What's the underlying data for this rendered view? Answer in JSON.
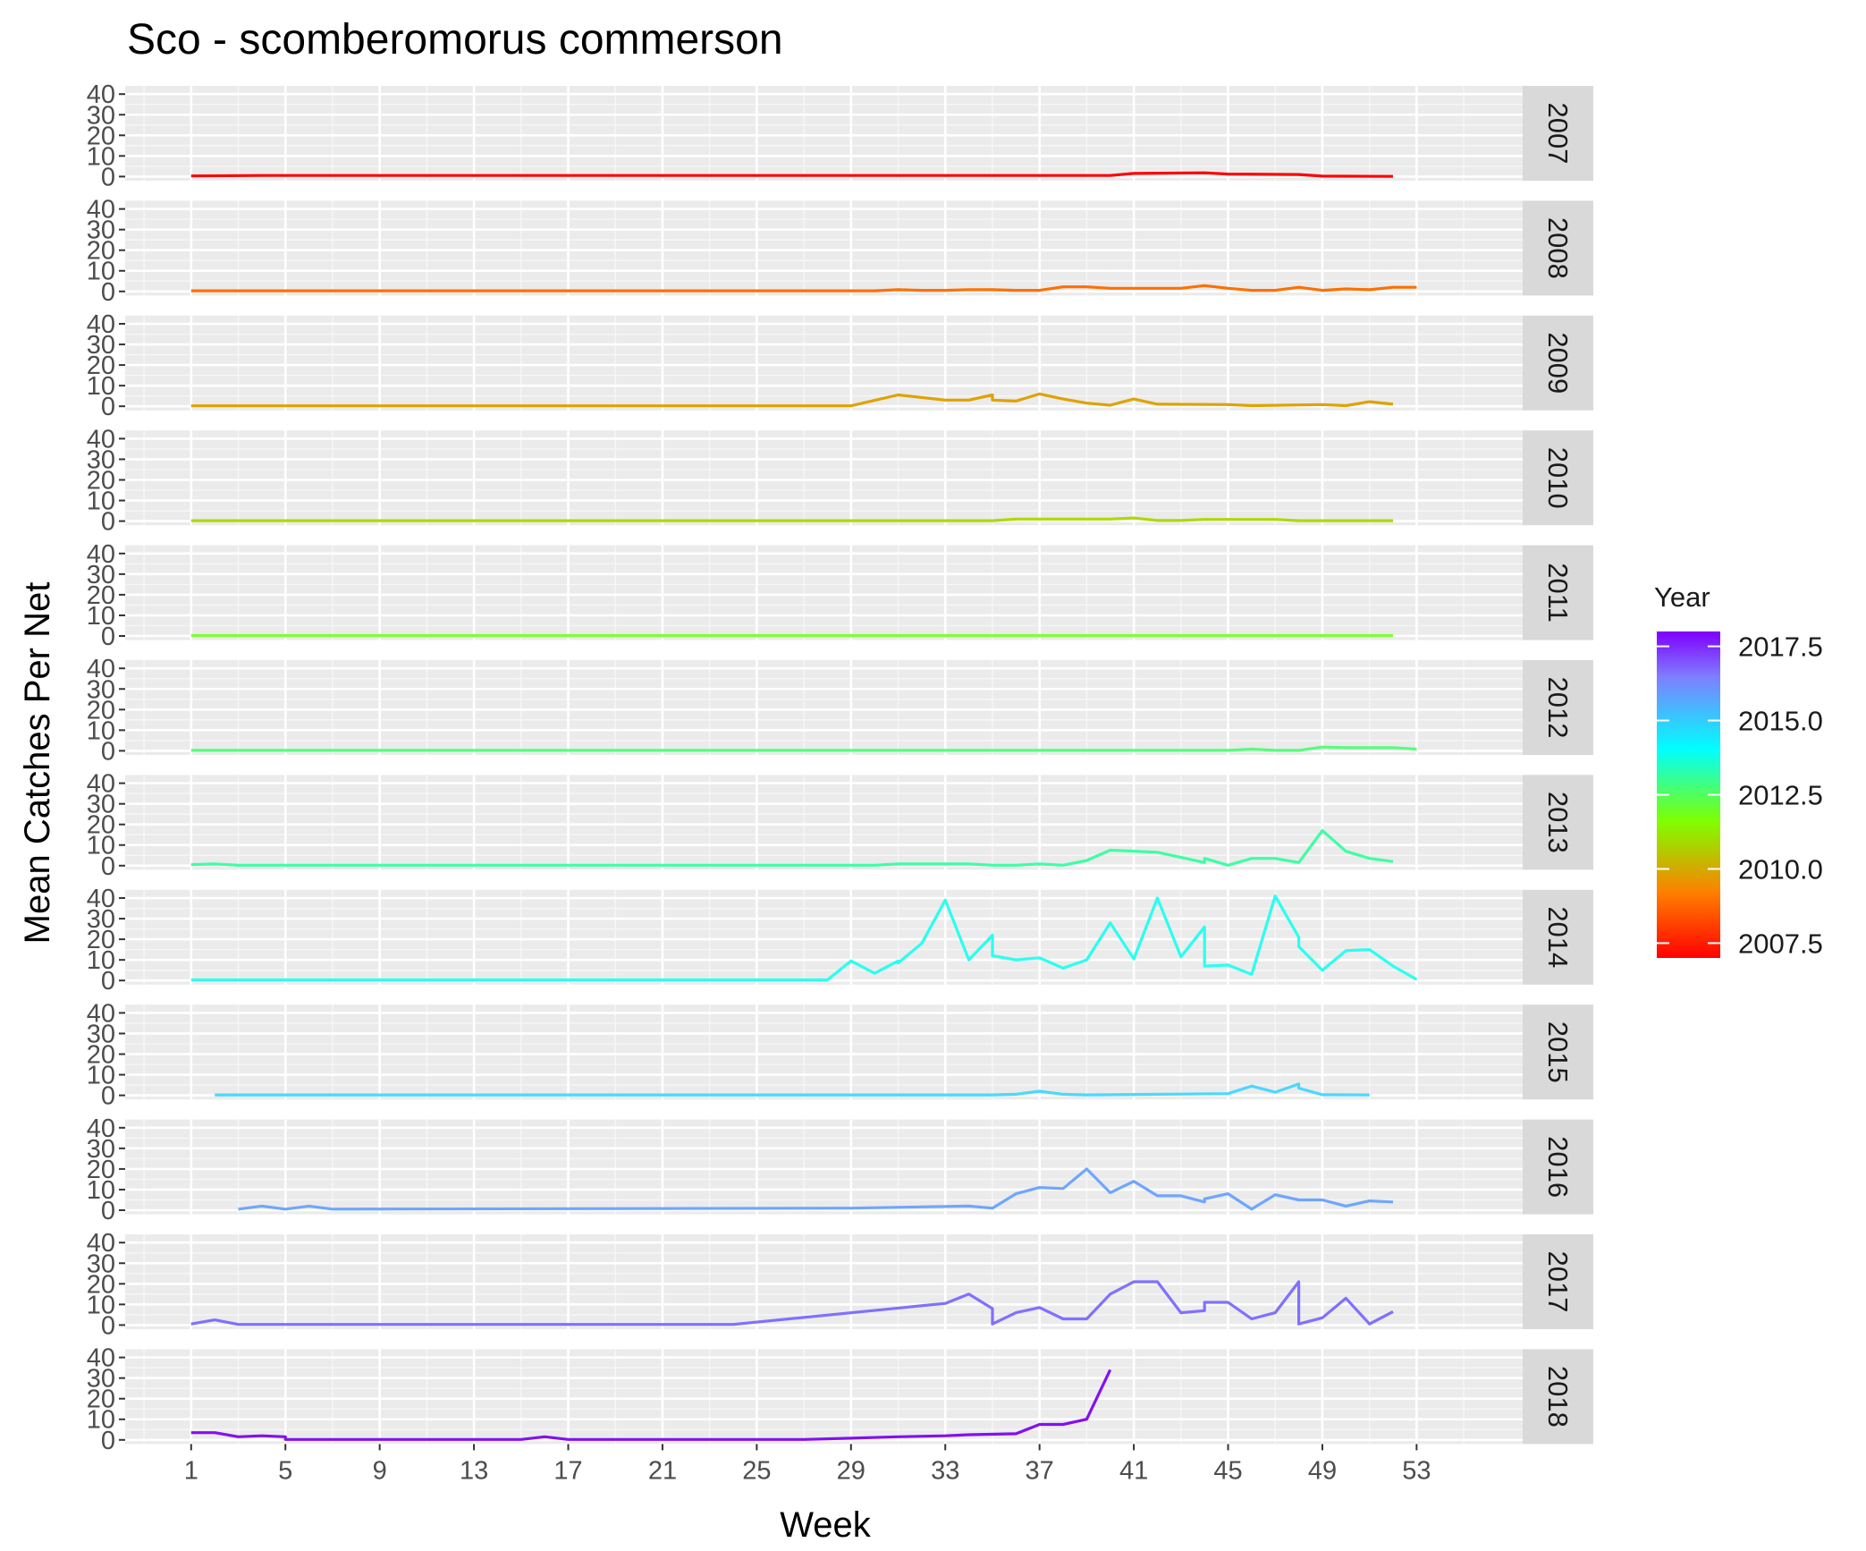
{
  "chart_data": {
    "type": "line",
    "title": "Sco - scomberomorus commerson",
    "xlabel": "Week",
    "ylabel": "Mean Catches Per Net",
    "xlim": [
      -1.8,
      57.5
    ],
    "ylim": [
      -2,
      44
    ],
    "x_ticks": [
      1,
      5,
      9,
      13,
      17,
      21,
      25,
      29,
      33,
      37,
      41,
      45,
      49,
      53
    ],
    "y_ticks": [
      0,
      10,
      20,
      30,
      40
    ],
    "grid": true,
    "legend": {
      "title": "Year",
      "position": "right",
      "range": [
        2007,
        2018
      ],
      "ticks": [
        "2007.5",
        "2010.0",
        "2012.5",
        "2015.0",
        "2017.5"
      ],
      "tick_values": [
        2007.5,
        2010.0,
        2012.5,
        2015.0,
        2017.5
      ],
      "colors": [
        "#ff0000",
        "#ff7f00",
        "#7fff00",
        "#00ffff",
        "#7f7fff",
        "#7f00ff"
      ]
    },
    "panels": [
      {
        "name": "2007",
        "color": "#ff0000",
        "x": [
          1,
          4,
          40,
          41,
          44,
          45,
          48,
          49,
          52
        ],
        "y": [
          0.3,
          0.5,
          0.5,
          1.5,
          1.8,
          1.2,
          1.0,
          0.2,
          0.1
        ]
      },
      {
        "name": "2008",
        "color": "#ff6f00",
        "x": [
          1,
          30,
          31,
          32,
          33,
          34,
          35,
          36,
          37,
          38,
          39,
          40,
          41,
          43,
          44,
          45,
          46,
          47,
          48,
          49,
          50,
          51,
          52,
          53
        ],
        "y": [
          0.3,
          0.3,
          0.8,
          0.5,
          0.5,
          0.8,
          0.8,
          0.5,
          0.5,
          2.2,
          2.2,
          1.5,
          1.5,
          1.5,
          2.8,
          1.5,
          0.5,
          0.5,
          2.0,
          0.5,
          1.2,
          0.8,
          2.0,
          2.0
        ]
      },
      {
        "name": "2009",
        "color": "#dfa200",
        "x": [
          1,
          29,
          31,
          33,
          34,
          35,
          35,
          36,
          37,
          38,
          39,
          40,
          41,
          42,
          45,
          46,
          49,
          50,
          51,
          52
        ],
        "y": [
          0.2,
          0.2,
          5.5,
          3.0,
          3.0,
          5.5,
          3.0,
          2.5,
          6.0,
          3.5,
          1.5,
          0.5,
          3.5,
          1.0,
          0.8,
          0.3,
          0.8,
          0.3,
          2.2,
          1.0
        ]
      },
      {
        "name": "2010",
        "color": "#b0d800",
        "x": [
          1,
          35,
          36,
          40,
          41,
          42,
          43,
          44,
          45,
          47,
          48,
          49,
          52
        ],
        "y": [
          0.2,
          0.2,
          1.0,
          1.0,
          1.5,
          0.3,
          0.3,
          0.8,
          0.8,
          0.8,
          0.2,
          0.2,
          0.2
        ]
      },
      {
        "name": "2011",
        "color": "#7fff33",
        "x": [
          1,
          52
        ],
        "y": [
          0.2,
          0.2
        ]
      },
      {
        "name": "2012",
        "color": "#55ff7a",
        "x": [
          1,
          45,
          46,
          47,
          48,
          49,
          50,
          51,
          52,
          53
        ],
        "y": [
          0.2,
          0.2,
          0.8,
          0.2,
          0.2,
          1.8,
          1.5,
          1.5,
          1.5,
          0.8
        ]
      },
      {
        "name": "2013",
        "color": "#3dffa3",
        "x": [
          1,
          2,
          3,
          30,
          31,
          34,
          35,
          36,
          37,
          38,
          39,
          40,
          42,
          44,
          44,
          45,
          46,
          47,
          48,
          49,
          50,
          51,
          52
        ],
        "y": [
          0.5,
          0.8,
          0.2,
          0.2,
          0.8,
          0.8,
          0.2,
          0.2,
          0.8,
          0.2,
          2.5,
          7.5,
          6.5,
          1.5,
          3.5,
          0.2,
          3.5,
          3.5,
          1.5,
          17.0,
          7.0,
          3.5,
          2.0
        ]
      },
      {
        "name": "2014",
        "color": "#2afff0",
        "x": [
          1,
          28,
          29,
          30,
          31,
          31,
          32,
          33,
          34,
          35,
          35,
          36,
          37,
          38,
          39,
          40,
          41,
          42,
          43,
          44,
          44,
          45,
          46,
          47,
          48,
          48,
          49,
          50,
          51,
          52,
          53
        ],
        "y": [
          0.3,
          0.3,
          9.5,
          3.5,
          9.5,
          8.5,
          18.0,
          39.0,
          10.0,
          22.0,
          12.0,
          10.0,
          11.0,
          6.0,
          10.0,
          28.0,
          10.5,
          40.0,
          11.5,
          26.0,
          7.0,
          7.5,
          3.0,
          41.0,
          21.0,
          16.5,
          5.0,
          14.5,
          15.0,
          7.0,
          0.5
        ]
      },
      {
        "name": "2015",
        "color": "#4ad8ff",
        "x": [
          2,
          35,
          36,
          37,
          38,
          39,
          45,
          46,
          47,
          48,
          48,
          49,
          51
        ],
        "y": [
          0.2,
          0.2,
          0.5,
          2.0,
          0.5,
          0.2,
          0.8,
          4.5,
          1.5,
          5.5,
          3.5,
          0.3,
          0.2
        ]
      },
      {
        "name": "2016",
        "color": "#6fa6ff",
        "x": [
          3,
          4,
          5,
          6,
          7,
          29,
          34,
          35,
          36,
          37,
          38,
          39,
          40,
          41,
          42,
          43,
          44,
          44,
          45,
          46,
          47,
          48,
          49,
          50,
          51,
          52
        ],
        "y": [
          0.5,
          2.0,
          0.5,
          2.0,
          0.5,
          1.0,
          2.0,
          1.0,
          8.0,
          11.0,
          10.5,
          20.0,
          8.5,
          14.0,
          7.0,
          7.0,
          4.0,
          5.5,
          8.0,
          0.5,
          7.5,
          5.0,
          5.0,
          2.0,
          4.5,
          4.0
        ]
      },
      {
        "name": "2017",
        "color": "#8070ff",
        "x": [
          1,
          2,
          3,
          24,
          33,
          34,
          35,
          35,
          36,
          37,
          38,
          39,
          40,
          41,
          42,
          43,
          44,
          44,
          45,
          46,
          47,
          48,
          48,
          49,
          50,
          51,
          52
        ],
        "y": [
          0.5,
          2.5,
          0.3,
          0.3,
          10.5,
          15.0,
          8.0,
          0.5,
          6.0,
          8.5,
          3.0,
          3.0,
          15.0,
          21.0,
          21.0,
          6.0,
          7.0,
          11.0,
          11.0,
          3.0,
          6.0,
          21.0,
          0.5,
          3.5,
          13.0,
          0.5,
          6.5
        ]
      },
      {
        "name": "2018",
        "color": "#8410f0",
        "x": [
          1,
          2,
          3,
          4,
          5,
          5,
          15,
          16,
          17,
          27,
          29,
          31,
          33,
          34,
          36,
          37,
          38,
          39,
          40
        ],
        "y": [
          3.5,
          3.5,
          1.5,
          2.0,
          1.5,
          0.2,
          0.2,
          1.5,
          0.2,
          0.2,
          0.8,
          1.5,
          2.0,
          2.5,
          3.0,
          7.5,
          7.5,
          10.0,
          34.0
        ]
      }
    ]
  }
}
